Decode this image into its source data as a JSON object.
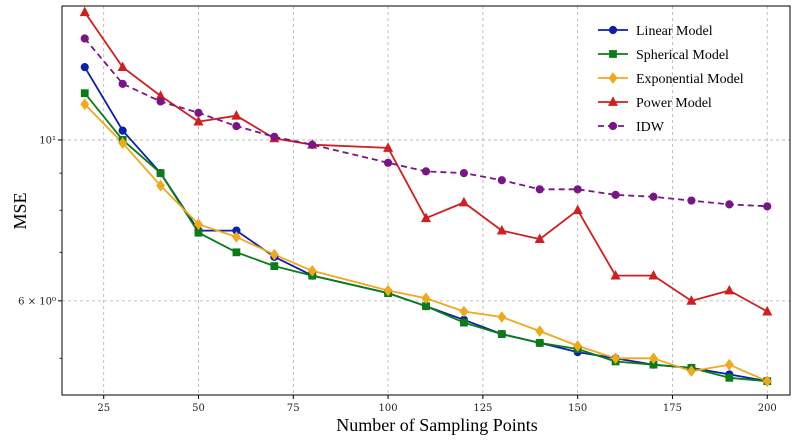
{
  "chart_data": {
    "type": "line",
    "title": "",
    "xlabel": "Number of Sampling Points",
    "ylabel": "MSE",
    "yscale": "log",
    "xlim": [
      14,
      206
    ],
    "ylim": [
      4.45,
      15.3
    ],
    "grid": true,
    "legend_position": "top-right",
    "x_ticks": [
      25,
      50,
      75,
      100,
      125,
      150,
      175,
      200
    ],
    "x_tick_labels": [
      "25",
      "50",
      "75",
      "100",
      "125",
      "150",
      "175",
      "200"
    ],
    "y_ticks": [
      10,
      6
    ],
    "y_tick_labels": [
      "10¹",
      "6 × 10⁰"
    ],
    "series": [
      {
        "name": "Linear Model",
        "color": "#0b1fb0",
        "marker": "circle",
        "dashed": false,
        "x": [
          20,
          30,
          40,
          50,
          60,
          70,
          80,
          100,
          110,
          120,
          130,
          140,
          150,
          160,
          170,
          180,
          190,
          200
        ],
        "y": [
          12.6,
          10.3,
          9.0,
          7.5,
          7.5,
          6.9,
          6.5,
          6.15,
          5.9,
          5.65,
          5.4,
          5.25,
          5.1,
          5.0,
          4.9,
          4.85,
          4.75,
          4.65
        ]
      },
      {
        "name": "Spherical Model",
        "color": "#0a7d16",
        "marker": "square",
        "dashed": false,
        "x": [
          20,
          30,
          40,
          50,
          60,
          70,
          80,
          100,
          110,
          120,
          130,
          140,
          150,
          160,
          170,
          180,
          190,
          200
        ],
        "y": [
          11.6,
          10.0,
          9.0,
          7.45,
          7.0,
          6.7,
          6.5,
          6.15,
          5.9,
          5.6,
          5.4,
          5.25,
          5.15,
          4.95,
          4.9,
          4.85,
          4.7,
          4.65
        ]
      },
      {
        "name": "Exponential Model",
        "color": "#f0a81c",
        "marker": "diamond",
        "dashed": false,
        "x": [
          20,
          30,
          40,
          50,
          60,
          70,
          80,
          100,
          110,
          120,
          130,
          140,
          150,
          160,
          170,
          180,
          190,
          200
        ],
        "y": [
          11.2,
          9.9,
          8.65,
          7.65,
          7.35,
          6.95,
          6.6,
          6.2,
          6.05,
          5.8,
          5.7,
          5.45,
          5.2,
          5.0,
          5.0,
          4.8,
          4.9,
          4.65
        ]
      },
      {
        "name": "Power Model",
        "color": "#d11f1f",
        "marker": "triangle",
        "dashed": false,
        "x": [
          20,
          30,
          40,
          50,
          60,
          70,
          80,
          100,
          110,
          120,
          130,
          140,
          150,
          160,
          170,
          180,
          190,
          200
        ],
        "y": [
          15.0,
          12.6,
          11.5,
          10.6,
          10.8,
          10.05,
          9.85,
          9.75,
          7.8,
          8.2,
          7.5,
          7.3,
          8.0,
          6.5,
          6.5,
          6.0,
          6.2,
          5.8
        ]
      },
      {
        "name": "IDW",
        "color": "#7a1587",
        "marker": "circle",
        "dashed": true,
        "x": [
          20,
          30,
          40,
          50,
          60,
          70,
          80,
          100,
          110,
          120,
          130,
          140,
          150,
          160,
          170,
          180,
          190,
          200
        ],
        "y": [
          13.8,
          11.95,
          11.3,
          10.9,
          10.45,
          10.1,
          9.85,
          9.3,
          9.05,
          9.0,
          8.8,
          8.55,
          8.55,
          8.4,
          8.35,
          8.25,
          8.15,
          8.1
        ]
      }
    ]
  }
}
